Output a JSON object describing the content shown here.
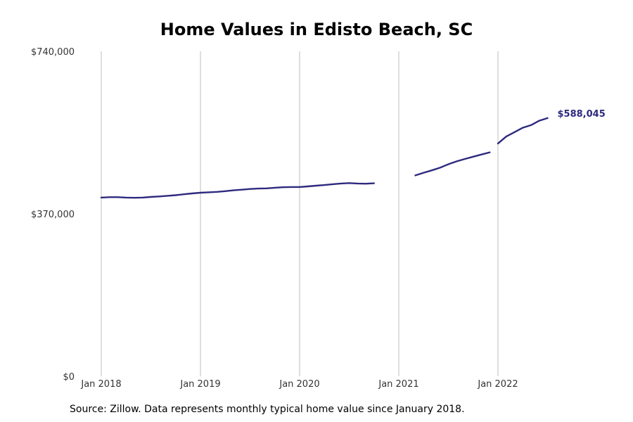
{
  "chart_data": {
    "type": "line",
    "title": "Home Values in Edisto Beach, SC",
    "xlabel": "",
    "ylabel": "",
    "ylim": [
      0,
      740000
    ],
    "y_ticks": [
      {
        "value": 0,
        "label": "$0"
      },
      {
        "value": 370000,
        "label": "$370,000"
      },
      {
        "value": 740000,
        "label": "$740,000"
      }
    ],
    "x_ticks": [
      {
        "value": "2018-01",
        "label": "Jan 2018"
      },
      {
        "value": "2019-01",
        "label": "Jan 2019"
      },
      {
        "value": "2020-01",
        "label": "Jan 2020"
      },
      {
        "value": "2021-01",
        "label": "Jan 2021"
      },
      {
        "value": "2022-01",
        "label": "Jan 2022"
      }
    ],
    "x_range": [
      "2018-01",
      "2022-12"
    ],
    "grid": {
      "x": true,
      "y": false
    },
    "line_color": "#2e2a7e",
    "series": [
      {
        "points": [
          [
            "2018-01",
            407000
          ],
          [
            "2018-02",
            408000
          ],
          [
            "2018-03",
            408000
          ],
          [
            "2018-04",
            407000
          ],
          [
            "2018-05",
            406500
          ],
          [
            "2018-06",
            407000
          ],
          [
            "2018-07",
            408500
          ],
          [
            "2018-08",
            409500
          ],
          [
            "2018-09",
            411000
          ],
          [
            "2018-10",
            412500
          ],
          [
            "2018-11",
            414500
          ],
          [
            "2018-12",
            416500
          ],
          [
            "2019-01",
            418000
          ],
          [
            "2019-02",
            419000
          ],
          [
            "2019-03",
            420000
          ],
          [
            "2019-04",
            421500
          ],
          [
            "2019-05",
            423500
          ],
          [
            "2019-06",
            425000
          ],
          [
            "2019-07",
            426500
          ],
          [
            "2019-08",
            427500
          ],
          [
            "2019-09",
            428000
          ],
          [
            "2019-10",
            429500
          ],
          [
            "2019-11",
            430500
          ],
          [
            "2019-12",
            431000
          ],
          [
            "2020-01",
            431000
          ],
          [
            "2020-02",
            432500
          ],
          [
            "2020-03",
            434000
          ],
          [
            "2020-04",
            435500
          ],
          [
            "2020-05",
            437500
          ],
          [
            "2020-06",
            439000
          ],
          [
            "2020-07",
            440000
          ],
          [
            "2020-08",
            439000
          ],
          [
            "2020-09",
            438500
          ],
          [
            "2020-10",
            439500
          ],
          [
            "2020-11",
            null
          ],
          [
            "2020-12",
            null
          ],
          [
            "2021-01",
            null
          ],
          [
            "2021-02",
            null
          ],
          [
            "2021-03",
            457500
          ],
          [
            "2021-04",
            463500
          ],
          [
            "2021-05",
            469000
          ],
          [
            "2021-06",
            475000
          ],
          [
            "2021-07",
            483000
          ],
          [
            "2021-08",
            489500
          ],
          [
            "2021-09",
            495000
          ],
          [
            "2021-10",
            500000
          ],
          [
            "2021-11",
            505000
          ],
          [
            "2021-12",
            510000
          ],
          [
            "2021-01x",
            null
          ],
          [
            "2022-01",
            530000
          ],
          [
            "2022-02",
            546000
          ],
          [
            "2022-03",
            556000
          ],
          [
            "2022-04",
            566000
          ],
          [
            "2022-05",
            572000
          ],
          [
            "2022-06",
            582000
          ],
          [
            "2022-07",
            588045
          ]
        ]
      }
    ],
    "end_label": "$588,045"
  },
  "source_note": "Source: Zillow. Data represents monthly typical home value since January 2018."
}
